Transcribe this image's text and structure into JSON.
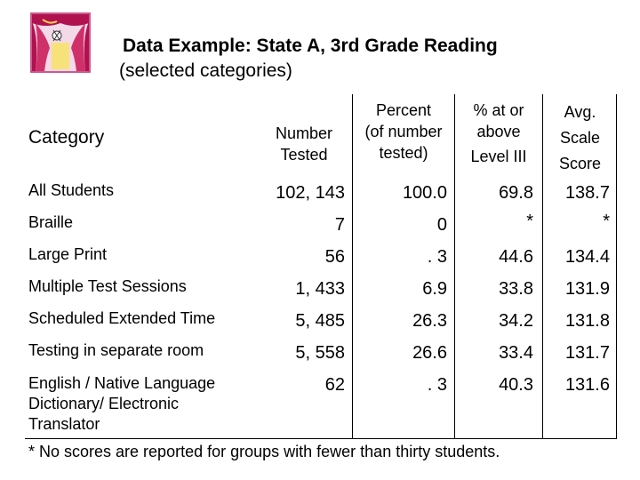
{
  "title": "Data Example: State A, 3rd Grade Reading",
  "subtitle": "(selected categories)",
  "logo_icon": "theater-curtain-icon",
  "table": {
    "headers": {
      "category": "Category",
      "number_line1": "Number",
      "number_line2": "Tested",
      "percent_line1": "Percent",
      "percent_line2": "(of number",
      "percent_line3": "tested)",
      "level_line1": "% at or",
      "level_line2": "above",
      "level_line3": "Level III",
      "avg_line1": "Avg.",
      "avg_line2": "Scale",
      "avg_line3": "Score"
    },
    "rows": [
      {
        "category": "All Students",
        "number": "102, 143",
        "percent": "100.0",
        "level": "69.8",
        "avg": "138.7"
      },
      {
        "category": "Braille",
        "number": "7",
        "percent": "0",
        "level": "*",
        "avg": "*"
      },
      {
        "category": "Large Print",
        "number": "56",
        "percent": ". 3",
        "level": "44.6",
        "avg": "134.4"
      },
      {
        "category": "Multiple Test Sessions",
        "number": "1, 433",
        "percent": "6.9",
        "level": "33.8",
        "avg": "131.9"
      },
      {
        "category": "Scheduled Extended Time",
        "number": "5, 485",
        "percent": "26.3",
        "level": "34.2",
        "avg": "131.8"
      },
      {
        "category": "Testing in separate room",
        "number": "5, 558",
        "percent": "26.6",
        "level": "33.4",
        "avg": "131.7"
      },
      {
        "category_line1": "English / Native Language",
        "category_line2": "Dictionary/ Electronic",
        "category_line3": "Translator",
        "number": "62",
        "percent": ". 3",
        "level": "40.3",
        "avg": "131.6"
      }
    ]
  },
  "footnote": "* No scores are reported for groups with fewer than thirty students."
}
